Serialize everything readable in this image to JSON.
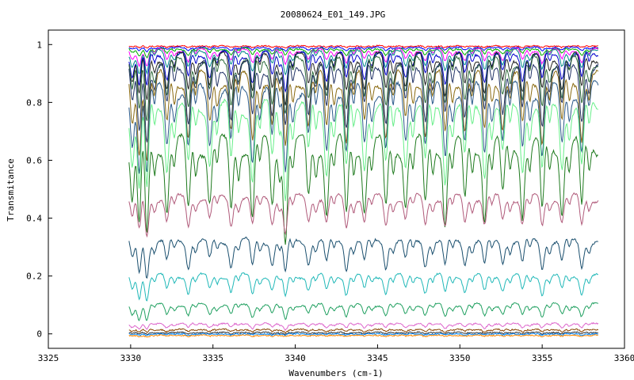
{
  "chart_data": {
    "type": "line",
    "title": "20080624_E01_149.JPG",
    "xlabel": "Wavenumbers (cm-1)",
    "ylabel": "Transmitance",
    "xlim": [
      3325,
      3360
    ],
    "ylim": [
      -0.05,
      1.05
    ],
    "x_ticks": [
      "3325",
      "3330",
      "3335",
      "3340",
      "3345",
      "3350",
      "3355",
      "3360"
    ],
    "y_ticks": [
      "0",
      "0.2",
      "0.4",
      "0.6",
      "0.8",
      "1"
    ],
    "x_range_data": [
      3329.9,
      3358.4
    ],
    "line_centers": [
      3330.1,
      3330.5,
      3331.0,
      3332.2,
      3333.5,
      3334.8,
      3336.1,
      3337.4,
      3338.6,
      3339.4,
      3340.8,
      3341.9,
      3343.1,
      3344.2,
      3345.5,
      3346.7,
      3347.9,
      3349.1,
      3350.3,
      3351.5,
      3352.6,
      3353.8,
      3355.0,
      3356.2,
      3357.4
    ],
    "series": [
      {
        "baseline": 0.995,
        "depth": 0.005,
        "color": "#ff0000"
      },
      {
        "baseline": 0.99,
        "depth": 0.01,
        "color": "#0000ff"
      },
      {
        "baseline": 0.985,
        "depth": 0.02,
        "color": "#00aa00"
      },
      {
        "baseline": 0.98,
        "depth": 0.04,
        "color": "#ff00ff"
      },
      {
        "baseline": 0.975,
        "depth": 0.06,
        "color": "#008888"
      },
      {
        "baseline": 0.965,
        "depth": 0.09,
        "color": "#0000cc"
      },
      {
        "baseline": 0.955,
        "depth": 0.12,
        "color": "#222222"
      },
      {
        "baseline": 0.94,
        "depth": 0.15,
        "color": "#2d6b3a"
      },
      {
        "baseline": 0.92,
        "depth": 0.18,
        "color": "#223366"
      },
      {
        "baseline": 0.88,
        "depth": 0.2,
        "color": "#8a6a10"
      },
      {
        "baseline": 0.84,
        "depth": 0.22,
        "color": "#2a5a8a"
      },
      {
        "baseline": 0.78,
        "depth": 0.23,
        "color": "#66ee88"
      },
      {
        "baseline": 0.65,
        "depth": 0.25,
        "color": "#1e7a1e"
      },
      {
        "baseline": 0.47,
        "depth": 0.1,
        "color": "#b05a7a"
      },
      {
        "baseline": 0.32,
        "depth": 0.09,
        "color": "#1a4f6e"
      },
      {
        "baseline": 0.2,
        "depth": 0.06,
        "color": "#20b8b8"
      },
      {
        "baseline": 0.1,
        "depth": 0.04,
        "color": "#20a060"
      },
      {
        "baseline": 0.035,
        "depth": 0.015,
        "color": "#dd66cc"
      },
      {
        "baseline": 0.015,
        "depth": 0.008,
        "color": "#884400"
      },
      {
        "baseline": 0.005,
        "depth": 0.005,
        "color": "#333333"
      },
      {
        "baseline": 0.0,
        "depth": 0.004,
        "color": "#0088ff"
      },
      {
        "baseline": -0.005,
        "depth": 0.004,
        "color": "#ff8800"
      }
    ]
  }
}
